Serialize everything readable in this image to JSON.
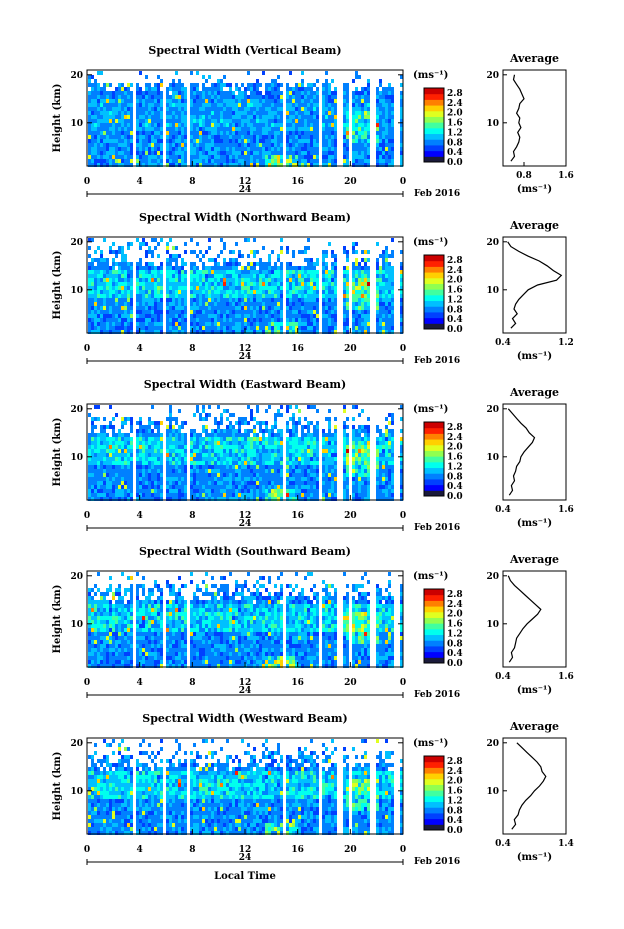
{
  "common": {
    "ylabel": "Height (km)",
    "xlabel": "Local Time",
    "date_label": "Feb 2016",
    "day_label": "24",
    "colorbar_unit": "(ms⁻¹)",
    "avg_title": "Average",
    "avg_xunit": "(ms⁻¹)",
    "x_ticks": [
      "0",
      "4",
      "8",
      "12",
      "16",
      "20",
      "0"
    ],
    "y_ticks": [
      "20",
      "10"
    ],
    "colorbar_ticks": [
      "2.8",
      "2.4",
      "2.0",
      "1.6",
      "1.2",
      "0.8",
      "0.4",
      "0.0"
    ],
    "colormap": [
      "#1a1a3a",
      "#0000ff",
      "#0040ff",
      "#0080ff",
      "#00c0ff",
      "#00ffee",
      "#40ffa0",
      "#90ff50",
      "#e0ff20",
      "#ffd000",
      "#ff8000",
      "#ff2000",
      "#cc0000"
    ]
  },
  "chart_data": [
    {
      "type": "heatmap",
      "title": "Spectral Width (Vertical Beam)",
      "xlim": [
        0,
        24
      ],
      "ylim": [
        1,
        21
      ],
      "clim": [
        0.0,
        3.0
      ],
      "gaps_hours": [
        3.5,
        5.8,
        7.6,
        14.9,
        17.6,
        19.1,
        19.9,
        21.6,
        23.4
      ],
      "avg_profile": {
        "type": "line",
        "xlim": [
          0.4,
          1.6
        ],
        "x_ticks": [
          "0.8",
          "1.6"
        ],
        "height_km": [
          2,
          3,
          4,
          5,
          6,
          7,
          8,
          9,
          10,
          11,
          12,
          13,
          14,
          15,
          16,
          17,
          18,
          19,
          20
        ],
        "values": [
          0.55,
          0.62,
          0.6,
          0.66,
          0.7,
          0.72,
          0.68,
          0.74,
          0.7,
          0.72,
          0.66,
          0.7,
          0.72,
          0.8,
          0.76,
          0.72,
          0.66,
          0.6,
          0.62
        ]
      }
    },
    {
      "type": "heatmap",
      "title": "Spectral Width (Northward Beam)",
      "xlim": [
        0,
        24
      ],
      "ylim": [
        1,
        21
      ],
      "clim": [
        0.0,
        3.0
      ],
      "gaps_hours": [
        3.5,
        5.8,
        7.6,
        14.9,
        17.6,
        19.1,
        19.9,
        21.6,
        23.4
      ],
      "avg_profile": {
        "type": "line",
        "xlim": [
          0.4,
          1.2
        ],
        "x_ticks": [
          "0.4",
          "1.2"
        ],
        "height_km": [
          2,
          3,
          4,
          5,
          6,
          7,
          8,
          9,
          10,
          11,
          12,
          13,
          14,
          15,
          16,
          17,
          18,
          19,
          20
        ],
        "values": [
          0.5,
          0.56,
          0.52,
          0.58,
          0.54,
          0.56,
          0.6,
          0.66,
          0.72,
          0.84,
          1.08,
          1.14,
          1.04,
          0.96,
          0.86,
          0.72,
          0.6,
          0.5,
          0.46
        ]
      }
    },
    {
      "type": "heatmap",
      "title": "Spectral Width (Eastward Beam)",
      "xlim": [
        0,
        24
      ],
      "ylim": [
        1,
        21
      ],
      "clim": [
        0.0,
        3.0
      ],
      "gaps_hours": [
        3.5,
        5.8,
        7.6,
        14.9,
        17.6,
        19.1,
        19.9,
        21.6,
        23.4
      ],
      "avg_profile": {
        "type": "line",
        "xlim": [
          0.4,
          1.6
        ],
        "x_ticks": [
          "0.4",
          "1.6"
        ],
        "height_km": [
          2,
          3,
          4,
          5,
          6,
          7,
          8,
          9,
          10,
          11,
          12,
          13,
          14,
          15,
          16,
          17,
          18,
          19,
          20
        ],
        "values": [
          0.52,
          0.58,
          0.56,
          0.62,
          0.6,
          0.64,
          0.66,
          0.72,
          0.74,
          0.8,
          0.88,
          0.96,
          1.0,
          0.9,
          0.84,
          0.74,
          0.66,
          0.58,
          0.5
        ]
      }
    },
    {
      "type": "heatmap",
      "title": "Spectral Width (Southward Beam)",
      "xlim": [
        0,
        24
      ],
      "ylim": [
        1,
        21
      ],
      "clim": [
        0.0,
        3.0
      ],
      "gaps_hours": [
        3.5,
        5.8,
        7.6,
        14.9,
        17.6,
        19.1,
        19.9,
        21.6,
        23.4
      ],
      "avg_profile": {
        "type": "line",
        "xlim": [
          0.4,
          1.6
        ],
        "x_ticks": [
          "0.4",
          "1.6"
        ],
        "height_km": [
          2,
          3,
          4,
          5,
          6,
          7,
          8,
          9,
          10,
          11,
          12,
          13,
          14,
          15,
          16,
          17,
          18,
          19,
          20
        ],
        "values": [
          0.52,
          0.58,
          0.56,
          0.62,
          0.64,
          0.66,
          0.72,
          0.78,
          0.86,
          0.96,
          1.06,
          1.12,
          1.02,
          0.92,
          0.82,
          0.72,
          0.62,
          0.54,
          0.5
        ]
      }
    },
    {
      "type": "heatmap",
      "title": "Spectral Width (Westward Beam)",
      "xlim": [
        0,
        24
      ],
      "ylim": [
        1,
        21
      ],
      "clim": [
        0.0,
        3.0
      ],
      "gaps_hours": [
        3.5,
        5.8,
        7.6,
        14.9,
        17.6,
        19.1,
        19.9,
        21.6,
        23.4
      ],
      "avg_profile": {
        "type": "line",
        "xlim": [
          0.4,
          1.4
        ],
        "x_ticks": [
          "0.4",
          "1.4"
        ],
        "height_km": [
          2,
          3,
          4,
          5,
          6,
          7,
          8,
          9,
          10,
          11,
          12,
          13,
          14,
          15,
          16,
          17,
          18,
          19,
          20
        ],
        "values": [
          0.54,
          0.6,
          0.58,
          0.64,
          0.66,
          0.7,
          0.76,
          0.84,
          0.9,
          0.98,
          1.04,
          1.08,
          1.02,
          1.0,
          0.94,
          0.86,
          0.78,
          0.7,
          0.62
        ]
      }
    }
  ]
}
